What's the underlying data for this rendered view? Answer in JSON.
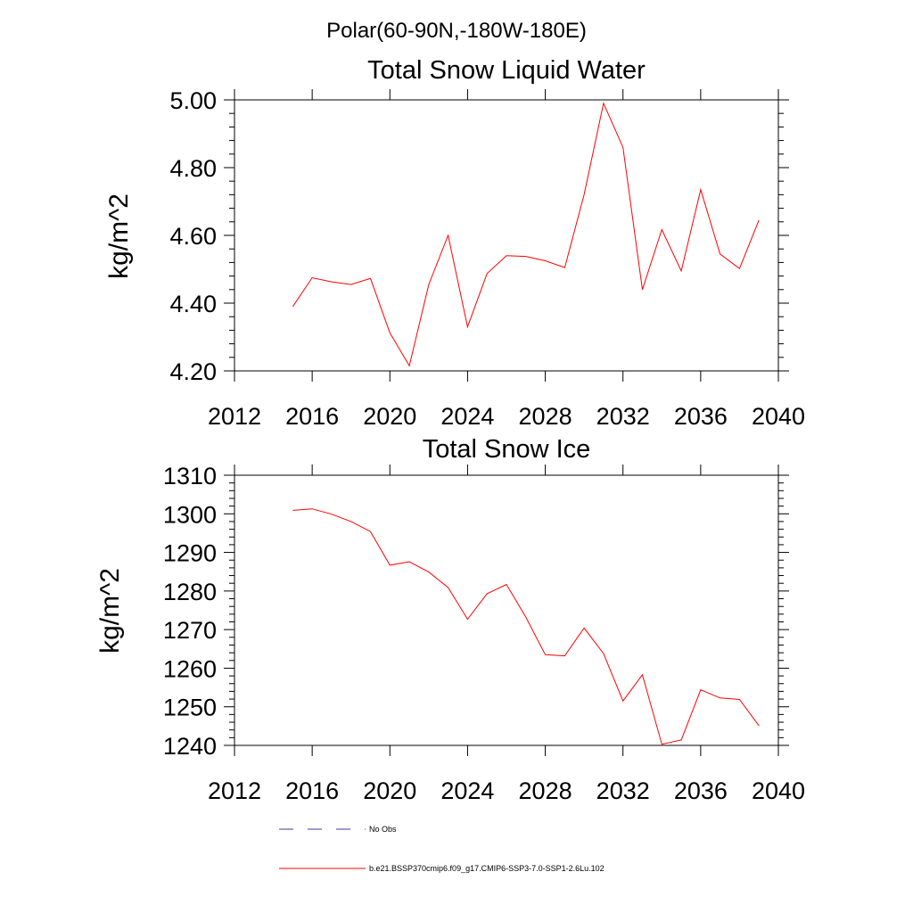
{
  "suptitle": "Polar(60-90N,-180W-180E)",
  "colors": {
    "series": "#ff0000",
    "obs": "#3a3aa0",
    "axes": "#000000"
  },
  "legend": [
    {
      "label": "No Obs",
      "style": "dashed",
      "color": "#3a3aa0"
    },
    {
      "label": "b.e21.BSSP370cmip6.f09_g17.CMIP6-SSP3-7.0-SSP1-2.6Lu.102",
      "style": "solid",
      "color": "#ff0000"
    }
  ],
  "chart_data": [
    {
      "type": "line",
      "title": "Total Snow Liquid Water",
      "xlabel": "",
      "ylabel": "kg/m^2",
      "xlim": [
        2012,
        2040
      ],
      "ylim": [
        4.2,
        5.0
      ],
      "xticks": [
        2012,
        2016,
        2020,
        2024,
        2028,
        2032,
        2036,
        2040
      ],
      "yticks": [
        4.2,
        4.4,
        4.6,
        4.8,
        5.0
      ],
      "xtick_labels": [
        "2012",
        "2016",
        "2020",
        "2024",
        "2028",
        "2032",
        "2036",
        "2040"
      ],
      "ytick_labels": [
        "4.20",
        "4.40",
        "4.60",
        "4.80",
        "5.00"
      ],
      "series": [
        {
          "color": "#ff0000",
          "x": [
            2015,
            2016,
            2017,
            2018,
            2019,
            2020,
            2021,
            2022,
            2023,
            2024,
            2025,
            2026,
            2027,
            2028,
            2029,
            2030,
            2031,
            2032,
            2033,
            2034,
            2035,
            2036,
            2037,
            2038,
            2039
          ],
          "y": [
            4.39,
            4.475,
            4.463,
            4.455,
            4.473,
            4.312,
            4.215,
            4.455,
            4.6,
            4.33,
            4.487,
            4.54,
            4.538,
            4.525,
            4.505,
            4.72,
            4.99,
            4.86,
            4.44,
            4.617,
            4.495,
            4.735,
            4.545,
            4.502,
            4.645
          ]
        }
      ]
    },
    {
      "type": "line",
      "title": "Total Snow Ice",
      "xlabel": "",
      "ylabel": "kg/m^2",
      "xlim": [
        2012,
        2040
      ],
      "ylim": [
        1240,
        1310
      ],
      "xticks": [
        2012,
        2016,
        2020,
        2024,
        2028,
        2032,
        2036,
        2040
      ],
      "yticks": [
        1240,
        1250,
        1260,
        1270,
        1280,
        1290,
        1300,
        1310
      ],
      "xtick_labels": [
        "2012",
        "2016",
        "2020",
        "2024",
        "2028",
        "2032",
        "2036",
        "2040"
      ],
      "ytick_labels": [
        "1240",
        "1250",
        "1260",
        "1270",
        "1280",
        "1290",
        "1300",
        "1310"
      ],
      "series": [
        {
          "color": "#ff0000",
          "x": [
            2015,
            2016,
            2017,
            2018,
            2019,
            2020,
            2021,
            2022,
            2023,
            2024,
            2025,
            2026,
            2027,
            2028,
            2029,
            2030,
            2031,
            2032,
            2033,
            2034,
            2035,
            2036,
            2037,
            2038,
            2039
          ],
          "y": [
            1300.9,
            1301.3,
            1299.9,
            1298,
            1295.4,
            1286.7,
            1287.6,
            1284.9,
            1280.9,
            1272.7,
            1279.3,
            1281.7,
            1273.2,
            1263.5,
            1263.2,
            1270.4,
            1263.8,
            1251.5,
            1258.3,
            1240.3,
            1241.4,
            1254.4,
            1252.3,
            1251.9,
            1245.1
          ]
        }
      ]
    }
  ]
}
